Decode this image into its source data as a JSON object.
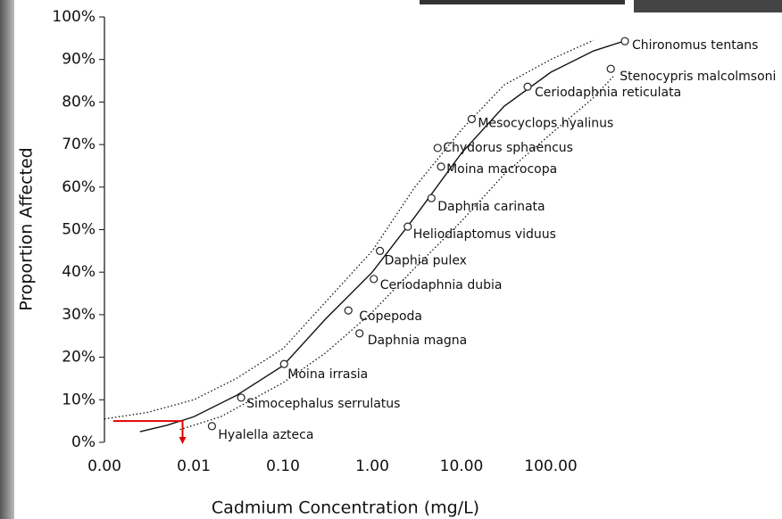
{
  "chart_data": {
    "type": "scatter",
    "x_label": "Cadmium Concentration (mg/L)",
    "y_label": "Proportion Affected",
    "log_x": true,
    "xlim": [
      0.001,
      1000
    ],
    "ylim": [
      0,
      100
    ],
    "xticks": [
      {
        "value": 0.001,
        "label": "0.00"
      },
      {
        "value": 0.01,
        "label": "0.01"
      },
      {
        "value": 0.1,
        "label": "0.10"
      },
      {
        "value": 1,
        "label": "1.00"
      },
      {
        "value": 10,
        "label": "10.00"
      },
      {
        "value": 100,
        "label": "100.00"
      }
    ],
    "yticks": [
      {
        "value": 0,
        "label": "0%"
      },
      {
        "value": 10,
        "label": "10%"
      },
      {
        "value": 20,
        "label": "20%"
      },
      {
        "value": 30,
        "label": "30%"
      },
      {
        "value": 40,
        "label": "40%"
      },
      {
        "value": 50,
        "label": "50%"
      },
      {
        "value": 60,
        "label": "60%"
      },
      {
        "value": 70,
        "label": "70%"
      },
      {
        "value": 80,
        "label": "80%"
      },
      {
        "value": 90,
        "label": "90%"
      },
      {
        "value": 100,
        "label": "100%"
      }
    ],
    "series": [
      {
        "color": "#222222",
        "labels": [
          "Hyalella azteca",
          "Simocephalus serrulatus",
          "Moina irrasia",
          "Copepoda",
          "Daphnia magna",
          "Ceriodaphnia dubia",
          "Daphia pulex",
          "Heliodiaptomus viduus",
          "Daphnia carinata",
          "Moina macrocopa",
          "Chydorus sphaencus",
          "Mesocyclops hyalinus",
          "Ceriodaphnia reticulata",
          "Stenocypris malcolmsoni",
          "Chironomus tentans"
        ],
        "x": [
          0.016,
          0.034,
          0.103,
          0.54,
          0.72,
          1.04,
          1.22,
          2.5,
          4.6,
          5.9,
          5.4,
          13,
          55,
          470,
          676
        ],
        "values": [
          3.8,
          10.5,
          18.4,
          31,
          25.6,
          38.4,
          45,
          50.7,
          57.4,
          64.8,
          69.2,
          76,
          83.6,
          87.8,
          94.3
        ]
      }
    ],
    "curves": [
      {
        "style": "solid",
        "x": [
          0.0025,
          0.005,
          0.01,
          0.03,
          0.1,
          0.3,
          1,
          3,
          10,
          30,
          100,
          300,
          700
        ],
        "values": [
          2.5,
          4,
          6,
          11,
          18,
          29,
          40,
          53,
          68,
          79,
          87,
          92,
          94.5
        ]
      },
      {
        "style": "dotted",
        "x": [
          0.001,
          0.003,
          0.01,
          0.03,
          0.1,
          0.3,
          1,
          3,
          10,
          30,
          100,
          300
        ],
        "values": [
          5.5,
          7,
          10,
          15,
          22,
          33,
          45,
          60,
          73.5,
          84,
          90,
          94.5
        ]
      },
      {
        "style": "dotted",
        "x": [
          0.007,
          0.02,
          0.1,
          0.3,
          1,
          3,
          10,
          30,
          100,
          300,
          500
        ],
        "values": [
          3,
          6,
          14,
          21,
          30.6,
          41,
          52,
          63,
          72.5,
          81,
          86
        ]
      }
    ],
    "marker": {
      "color": "#e00000",
      "x": 0.0075,
      "y": 5
    }
  }
}
